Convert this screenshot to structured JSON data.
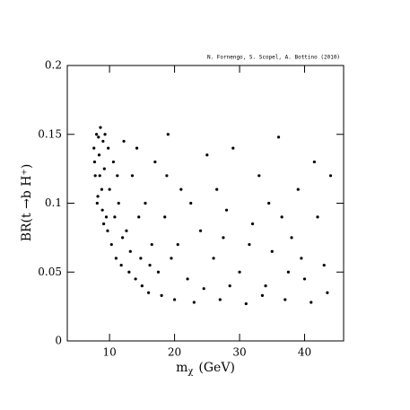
{
  "chart_data": {
    "type": "scatter",
    "annotation": "N. Fornengo, S. Scopel, A. Bottino  (2010)",
    "x_label": {
      "base": "m",
      "sub": "χ",
      "unit": "(GeV)"
    },
    "y_label": "BR(t →b H⁺)",
    "xlim": [
      3.5,
      46
    ],
    "xticks": [
      10,
      20,
      30,
      40
    ],
    "ylim": [
      0,
      0.2
    ],
    "yticks": [
      0,
      0.05,
      0.1,
      0.15,
      0.2
    ],
    "color": "#000000",
    "x": [
      7.6,
      7.8,
      8.0,
      8.2,
      8.4,
      8.6,
      8.8,
      9.0,
      9.2,
      9.5,
      7.7,
      8.1,
      8.5,
      8.9,
      9.3,
      9.7,
      10.0,
      9.8,
      8.3,
      9.1,
      10.3,
      10.6,
      11.0,
      11.4,
      11.8,
      12.2,
      12.6,
      13.0,
      13.5,
      14.0,
      14.5,
      15.0,
      10.8,
      12.0,
      13.2,
      14.2,
      11.2,
      14.8,
      15.5,
      16.0,
      16.5,
      17.0,
      17.5,
      18.0,
      18.5,
      19.0,
      19.5,
      20.0,
      21.0,
      22.0,
      23.0,
      24.0,
      25.0,
      16.2,
      18.8,
      20.5,
      22.5,
      24.5,
      26.0,
      27.0,
      28.0,
      29.0,
      30.0,
      31.0,
      32.0,
      33.0,
      34.0,
      35.0,
      36.0,
      37.0,
      38.0,
      39.0,
      40.0,
      41.0,
      42.0,
      43.0,
      44.0,
      26.5,
      28.5,
      31.5,
      33.5,
      36.5,
      39.5,
      41.5,
      43.5,
      27.5,
      34.5,
      37.5
    ],
    "y": [
      0.14,
      0.12,
      0.15,
      0.105,
      0.135,
      0.155,
      0.11,
      0.145,
      0.125,
      0.09,
      0.13,
      0.1,
      0.12,
      0.095,
      0.15,
      0.08,
      0.11,
      0.14,
      0.148,
      0.085,
      0.07,
      0.13,
      0.06,
      0.1,
      0.055,
      0.145,
      0.08,
      0.05,
      0.12,
      0.045,
      0.09,
      0.04,
      0.09,
      0.075,
      0.065,
      0.14,
      0.12,
      0.06,
      0.1,
      0.035,
      0.07,
      0.13,
      0.05,
      0.033,
      0.09,
      0.15,
      0.06,
      0.03,
      0.11,
      0.045,
      0.028,
      0.08,
      0.135,
      0.055,
      0.12,
      0.07,
      0.1,
      0.038,
      0.06,
      0.03,
      0.095,
      0.14,
      0.05,
      0.027,
      0.085,
      0.12,
      0.04,
      0.065,
      0.148,
      0.03,
      0.075,
      0.11,
      0.045,
      0.028,
      0.09,
      0.055,
      0.12,
      0.11,
      0.04,
      0.07,
      0.033,
      0.09,
      0.06,
      0.13,
      0.035,
      0.075,
      0.1,
      0.05
    ]
  }
}
